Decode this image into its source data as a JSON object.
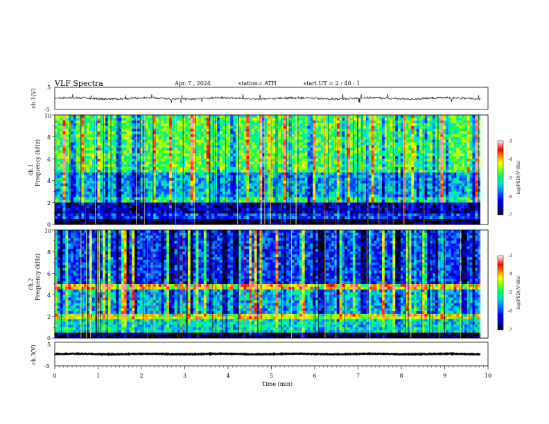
{
  "header": {
    "title": "VLF  Spectra",
    "date": "Apr. 7  , 2024",
    "station": "station= ATH",
    "start": "start  UT  =   2  : 40 : 1"
  },
  "colors": {
    "waveform": "#000000",
    "colormap": [
      "#000000",
      "#0000a0",
      "#0000ff",
      "#0060ff",
      "#00c0ff",
      "#00e0c0",
      "#40ff40",
      "#c0ff00",
      "#ffff00",
      "#ff8000",
      "#ff0000",
      "#ff8080",
      "#ffffff"
    ]
  },
  "chart_data": [
    {
      "type": "line",
      "panel": "ch1-waveform",
      "ylabel": "ch.1(V)",
      "ylim": [
        -5,
        5
      ],
      "yticks": [
        "5",
        "-5"
      ],
      "x_range_min": [
        0,
        9.83
      ],
      "approx_level": 0,
      "description_values": {
        "baseline_V": 0,
        "noise_amplitude_V": 1.5,
        "spike_max_V": 4
      }
    },
    {
      "type": "heatmap",
      "panel": "ch1-spectrogram",
      "ylabel_line1": "ch.1",
      "ylabel_line2": "Frequency  (kHz)",
      "ylim": [
        0,
        10
      ],
      "yticks": [
        "0",
        "2",
        "4",
        "6",
        "8",
        "10"
      ],
      "colorbar": {
        "label": "log(PSD)(V²/Hz)",
        "range": [
          -7,
          -3
        ],
        "ticks": [
          "-3",
          "-4",
          "-5",
          "-6",
          "-7"
        ]
      },
      "bands_khz": [
        {
          "from": 0.0,
          "to": 0.6,
          "level": -7
        },
        {
          "from": 0.6,
          "to": 1.1,
          "level": -6
        },
        {
          "from": 1.1,
          "to": 2.0,
          "level": -6.5
        },
        {
          "from": 2.0,
          "to": 2.6,
          "level": -5
        },
        {
          "from": 2.6,
          "to": 4.8,
          "level": -5.5
        },
        {
          "from": 4.8,
          "to": 10.0,
          "level": -4.8
        }
      ]
    },
    {
      "type": "heatmap",
      "panel": "ch2-spectrogram",
      "ylabel_line1": "ch.2",
      "ylabel_line2": "Frequency  (kHz)",
      "ylim": [
        0,
        10
      ],
      "yticks": [
        "0",
        "2",
        "4",
        "6",
        "8",
        "10"
      ],
      "colorbar": {
        "label": "log(PSD)(V²/Hz)",
        "range": [
          -7,
          -3
        ],
        "ticks": [
          "-3",
          "-4",
          "-5",
          "-6",
          "-7"
        ]
      },
      "bands_khz": [
        {
          "from": 0.0,
          "to": 0.4,
          "level": -7
        },
        {
          "from": 0.4,
          "to": 1.8,
          "level": -5.3
        },
        {
          "from": 1.8,
          "to": 2.3,
          "level": -4.3
        },
        {
          "from": 2.3,
          "to": 4.6,
          "level": -5.5
        },
        {
          "from": 4.6,
          "to": 4.9,
          "level": -4
        },
        {
          "from": 4.9,
          "to": 10.0,
          "level": -6
        }
      ]
    },
    {
      "type": "line",
      "panel": "ch3-waveform",
      "ylabel": "ch.3(V)",
      "ylim": [
        -5,
        5
      ],
      "yticks": [
        "5",
        "-5"
      ],
      "x_range_min": [
        0,
        9.83
      ],
      "approx_level": 0
    }
  ],
  "xaxis": {
    "label": "Time  (min)",
    "ticks": [
      "0",
      "1",
      "2",
      "3",
      "4",
      "5",
      "6",
      "7",
      "8",
      "9",
      "10"
    ],
    "range": [
      0,
      10
    ]
  }
}
